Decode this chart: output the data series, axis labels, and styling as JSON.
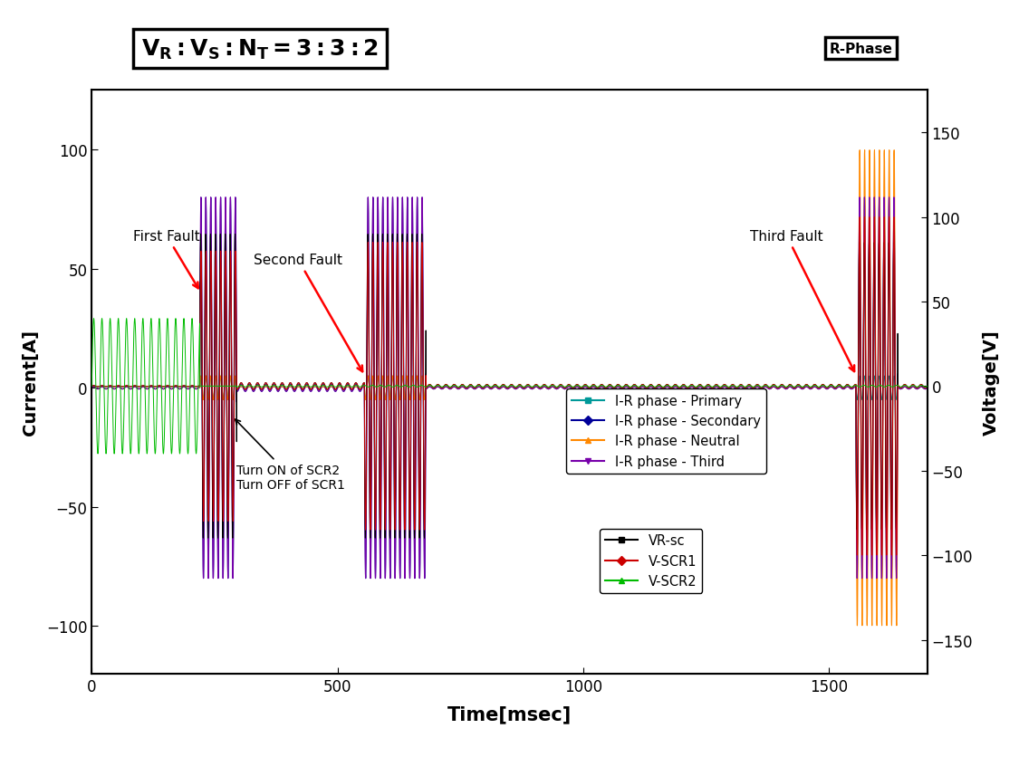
{
  "title": "$V_R:V_S:N_T=3:3:2$",
  "xlabel": "Time[msec]",
  "ylabel_left": "Current[A]",
  "ylabel_right": "Voltage[V]",
  "xlim": [
    0,
    1700
  ],
  "ylim_left": [
    -120,
    125
  ],
  "ylim_right": [
    -170,
    175
  ],
  "yticks_left": [
    -100,
    -50,
    0,
    50,
    100
  ],
  "yticks_right": [
    -150,
    -100,
    -50,
    0,
    50,
    100,
    150
  ],
  "xticks": [
    0,
    500,
    1000,
    1500
  ],
  "background_color": "#ffffff",
  "legend1_entries": [
    "I-R phase - Primary",
    "I-R phase - Secondary",
    "I-R phase - Neutral",
    "I-R phase - Third"
  ],
  "legend1_colors": [
    "#009999",
    "#000099",
    "#ff8800",
    "#7700aa"
  ],
  "legend1_markers": [
    "s",
    "D",
    "^",
    "v"
  ],
  "legend2_entries": [
    "VR-sc",
    "V-SCR1",
    "V-SCR2"
  ],
  "legend2_colors": [
    "#000000",
    "#cc0000",
    "#00bb00"
  ],
  "legend2_markers": [
    "s",
    "D",
    "^"
  ],
  "freq_pre": 7,
  "freq_fault": 7,
  "dt": 0.2,
  "fault1_start": 220,
  "fault1_end": 295,
  "fault2_start": 555,
  "fault2_end": 680,
  "fault3_start": 1555,
  "fault3_end": 1640,
  "vscr2_amp": 40,
  "vscr1_fault1_amp": 80,
  "vscr1_fault2_amp": 85,
  "vscr1_fault3_amp": 100,
  "vrsc_fault1_amp": 90,
  "vrsc_fault2_amp": 90,
  "vrsc_fault3_amp": 85,
  "ir_primary_amp": 5,
  "ir_secondary_amp": 80,
  "ir_neutral_amp_fault1": 5,
  "ir_neutral_amp_fault2": 5,
  "ir_neutral_amp_fault3": 100,
  "ir_third_amp": 80
}
